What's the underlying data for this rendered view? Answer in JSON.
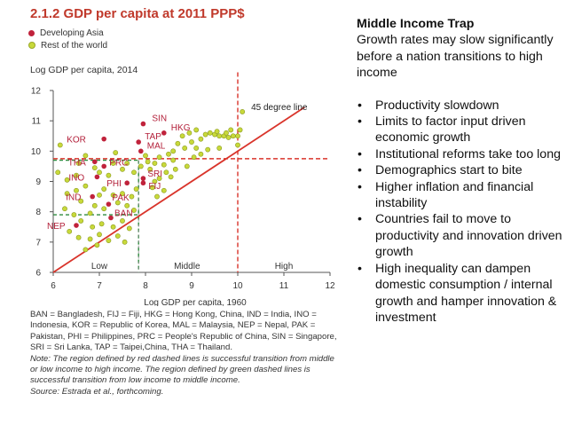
{
  "figure": {
    "number": "2.1.2",
    "title": "GDP per capita at 2011 PPP$"
  },
  "legend": [
    {
      "label": "Developing Asia",
      "color": "#c0223b"
    },
    {
      "label": "Rest of the world",
      "color": "#c8d93a"
    }
  ],
  "chart_data": {
    "type": "scatter",
    "xlabel": "Log GDP per capita, 1960",
    "ylabel": "Log GDP per capita, 2014",
    "xlim": [
      6,
      12
    ],
    "ylim": [
      6,
      12
    ],
    "xticks": [
      "6",
      "7",
      "8",
      "9",
      "10",
      "11",
      "12"
    ],
    "yticks": [
      "6",
      "7",
      "8",
      "9",
      "10",
      "11",
      "12"
    ],
    "regions": [
      {
        "label": "Low",
        "x": 7.0
      },
      {
        "label": "Middle",
        "x": 8.9
      },
      {
        "label": "High",
        "x": 11.0
      }
    ],
    "reference_line": {
      "label": "45 degree line",
      "from": [
        6,
        6
      ],
      "to": [
        12,
        12
      ]
    },
    "thresholds": {
      "red_x": 10.0,
      "red_y": 9.75,
      "green_x": 7.85,
      "green_y_low": 7.9,
      "green_y_high": 9.7
    },
    "series": [
      {
        "name": "Developing Asia",
        "color": "#c0223b",
        "points": [
          {
            "label": "SIN",
            "x": 7.95,
            "y": 10.9
          },
          {
            "label": "HKG",
            "x": 8.4,
            "y": 10.6
          },
          {
            "label": "TAP",
            "x": 7.85,
            "y": 10.3
          },
          {
            "label": "KOR",
            "x": 7.1,
            "y": 10.4
          },
          {
            "label": "MAL",
            "x": 7.9,
            "y": 10.0
          },
          {
            "label": "THA",
            "x": 6.9,
            "y": 9.65
          },
          {
            "label": "PRC",
            "x": 7.1,
            "y": 9.5
          },
          {
            "label": "INO",
            "x": 6.95,
            "y": 9.15
          },
          {
            "label": "SRI",
            "x": 7.95,
            "y": 9.1
          },
          {
            "label": "FIJ",
            "x": 7.95,
            "y": 8.95
          },
          {
            "label": "PHI",
            "x": 7.6,
            "y": 8.95
          },
          {
            "label": "IND",
            "x": 6.85,
            "y": 8.5
          },
          {
            "label": "PAK",
            "x": 7.2,
            "y": 8.25
          },
          {
            "label": "BAN",
            "x": 7.25,
            "y": 7.8
          },
          {
            "label": "NEP",
            "x": 6.5,
            "y": 7.55
          }
        ]
      },
      {
        "name": "Rest of the world",
        "color": "#c8d93a",
        "points": [
          {
            "x": 9.4,
            "y": 10.6
          },
          {
            "x": 9.5,
            "y": 10.55
          },
          {
            "x": 9.6,
            "y": 10.5
          },
          {
            "x": 9.7,
            "y": 10.5
          },
          {
            "x": 9.8,
            "y": 10.45
          },
          {
            "x": 9.9,
            "y": 10.5
          },
          {
            "x": 9.55,
            "y": 10.65
          },
          {
            "x": 9.75,
            "y": 10.6
          },
          {
            "x": 9.3,
            "y": 10.55
          },
          {
            "x": 9.2,
            "y": 10.4
          },
          {
            "x": 9.1,
            "y": 10.7
          },
          {
            "x": 8.95,
            "y": 10.6
          },
          {
            "x": 10.0,
            "y": 10.5
          },
          {
            "x": 10.1,
            "y": 11.3
          },
          {
            "x": 10.05,
            "y": 10.7
          },
          {
            "x": 9.85,
            "y": 10.7
          },
          {
            "x": 9.0,
            "y": 10.3
          },
          {
            "x": 8.8,
            "y": 10.5
          },
          {
            "x": 8.85,
            "y": 10.1
          },
          {
            "x": 8.6,
            "y": 10.0
          },
          {
            "x": 8.7,
            "y": 10.25
          },
          {
            "x": 9.1,
            "y": 10.1
          },
          {
            "x": 8.5,
            "y": 9.9
          },
          {
            "x": 8.6,
            "y": 9.7
          },
          {
            "x": 8.3,
            "y": 9.8
          },
          {
            "x": 8.4,
            "y": 9.55
          },
          {
            "x": 8.45,
            "y": 9.3
          },
          {
            "x": 8.3,
            "y": 9.1
          },
          {
            "x": 8.1,
            "y": 9.4
          },
          {
            "x": 8.2,
            "y": 9.6
          },
          {
            "x": 8.0,
            "y": 9.85
          },
          {
            "x": 8.05,
            "y": 9.65
          },
          {
            "x": 7.9,
            "y": 9.5
          },
          {
            "x": 7.75,
            "y": 9.3
          },
          {
            "x": 7.6,
            "y": 9.6
          },
          {
            "x": 7.5,
            "y": 9.4
          },
          {
            "x": 7.3,
            "y": 9.6
          },
          {
            "x": 7.2,
            "y": 9.2
          },
          {
            "x": 7.0,
            "y": 9.3
          },
          {
            "x": 6.9,
            "y": 9.45
          },
          {
            "x": 6.55,
            "y": 9.6
          },
          {
            "x": 6.5,
            "y": 9.2
          },
          {
            "x": 6.3,
            "y": 9.05
          },
          {
            "x": 6.15,
            "y": 10.2
          },
          {
            "x": 6.3,
            "y": 8.6
          },
          {
            "x": 6.5,
            "y": 8.7
          },
          {
            "x": 6.7,
            "y": 8.85
          },
          {
            "x": 6.6,
            "y": 8.35
          },
          {
            "x": 7.0,
            "y": 8.55
          },
          {
            "x": 7.1,
            "y": 8.75
          },
          {
            "x": 7.3,
            "y": 8.55
          },
          {
            "x": 7.5,
            "y": 8.6
          },
          {
            "x": 7.7,
            "y": 8.5
          },
          {
            "x": 7.8,
            "y": 8.75
          },
          {
            "x": 7.4,
            "y": 8.3
          },
          {
            "x": 7.6,
            "y": 8.2
          },
          {
            "x": 7.75,
            "y": 8.05
          },
          {
            "x": 7.1,
            "y": 8.1
          },
          {
            "x": 6.9,
            "y": 8.2
          },
          {
            "x": 6.8,
            "y": 7.95
          },
          {
            "x": 6.6,
            "y": 7.7
          },
          {
            "x": 6.85,
            "y": 7.5
          },
          {
            "x": 7.05,
            "y": 7.6
          },
          {
            "x": 7.3,
            "y": 7.5
          },
          {
            "x": 7.5,
            "y": 7.7
          },
          {
            "x": 7.65,
            "y": 7.45
          },
          {
            "x": 6.35,
            "y": 7.35
          },
          {
            "x": 6.55,
            "y": 7.15
          },
          {
            "x": 6.8,
            "y": 7.1
          },
          {
            "x": 7.0,
            "y": 7.25
          },
          {
            "x": 7.2,
            "y": 7.05
          },
          {
            "x": 7.4,
            "y": 7.2
          },
          {
            "x": 7.55,
            "y": 7.0
          },
          {
            "x": 6.95,
            "y": 6.9
          },
          {
            "x": 6.7,
            "y": 6.75
          },
          {
            "x": 6.45,
            "y": 7.9
          },
          {
            "x": 6.25,
            "y": 8.1
          },
          {
            "x": 8.15,
            "y": 8.8
          },
          {
            "x": 8.2,
            "y": 9.0
          },
          {
            "x": 8.55,
            "y": 9.15
          },
          {
            "x": 8.65,
            "y": 9.4
          },
          {
            "x": 8.9,
            "y": 9.5
          },
          {
            "x": 9.05,
            "y": 9.8
          },
          {
            "x": 9.2,
            "y": 9.9
          },
          {
            "x": 9.35,
            "y": 10.05
          },
          {
            "x": 9.6,
            "y": 10.1
          },
          {
            "x": 8.25,
            "y": 8.5
          },
          {
            "x": 8.4,
            "y": 8.7
          },
          {
            "x": 6.1,
            "y": 9.3
          },
          {
            "x": 7.35,
            "y": 9.95
          },
          {
            "x": 6.7,
            "y": 9.85
          },
          {
            "x": 10.0,
            "y": 10.2
          }
        ]
      }
    ]
  },
  "footer": {
    "abbrev": "BAN = Bangladesh, FIJ = Fiji, HKG = Hong Kong, China, IND = India, INO = Indonesia, KOR = Republic of Korea, MAL = Malaysia, NEP = Nepal, PAK = Pakistan, PHI = Philippines, PRC = People's Republic of China, SIN = Singapore, SRI = Sri Lanka, TAP = Taipei,China, THA = Thailand.",
    "note": "Note: The region defined by red dashed lines is successful transition from middle or low income to high income. The region defined by green dashed lines is successful transition from low income to middle income.",
    "source": "Source: Estrada et al., forthcoming."
  },
  "panel": {
    "heading": "Middle Income Trap",
    "subtitle": "Growth rates may slow significantly before a nation transitions to high income",
    "bullets": [
      "Productivity slowdown",
      "Limits to factor input driven economic growth",
      "Institutional reforms take too long",
      "Demographics start to bite",
      "Higher inflation and financial instability",
      "Countries fail to move to productivity and innovation driven growth",
      "High inequality can dampen domestic consumption / internal growth and hamper innovation & investment"
    ]
  }
}
